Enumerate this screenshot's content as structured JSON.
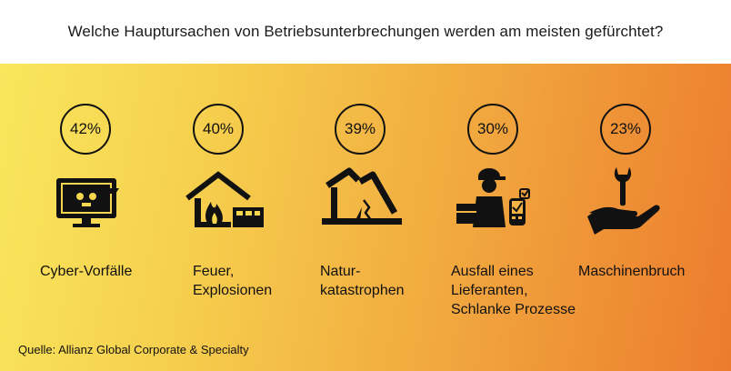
{
  "title": "Welche Hauptursachen von Betriebsunterbrechungen werden am meisten gefürchtet?",
  "source": "Quelle: Allianz Global Corporate & Specialty",
  "chart_data": {
    "type": "table",
    "title": "Welche Hauptursachen von Betriebsunterbrechungen werden am meisten gefürchtet?",
    "unit": "%",
    "categories": [
      "Cyber-Vorfälle",
      "Feuer,\nExplosionen",
      "Natur-\nkatastrophen",
      "Ausfall eines\nLieferanten,\nSchlanke Prozesse",
      "Maschinenbruch"
    ],
    "values": [
      42,
      40,
      39,
      30,
      23
    ],
    "value_labels": [
      "42%",
      "40%",
      "39%",
      "30%",
      "23%"
    ],
    "icons": [
      "computer-skull-icon",
      "house-fire-icon",
      "collapsed-building-icon",
      "delivery-worker-icon",
      "hand-wrench-icon"
    ]
  },
  "colors": {
    "gradient_start": "#f9e75c",
    "gradient_end": "#ec7b2d",
    "ink": "#111111"
  }
}
